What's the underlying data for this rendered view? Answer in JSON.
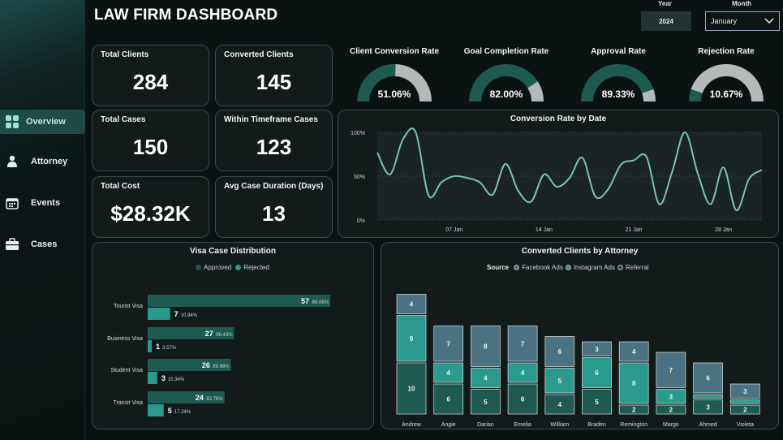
{
  "title": "LAW FIRM DASHBOARD",
  "filters": {
    "year_label": "Year",
    "year_value": "2024",
    "month_label": "Month",
    "month_value": "January"
  },
  "nav": [
    {
      "label": "Overview",
      "icon": "grid-icon"
    },
    {
      "label": "Attorney",
      "icon": "person-icon"
    },
    {
      "label": "Events",
      "icon": "calendar-icon"
    },
    {
      "label": "Cases",
      "icon": "briefcase-icon"
    }
  ],
  "kpis": [
    {
      "label": "Total Clients",
      "value": "284"
    },
    {
      "label": "Converted Clients",
      "value": "145"
    },
    {
      "label": "Total Cases",
      "value": "150"
    },
    {
      "label": "Within Timeframe Cases",
      "value": "123"
    },
    {
      "label": "Total Cost",
      "value": "$28.32K"
    },
    {
      "label": "Avg Case Duration (Days)",
      "value": "13"
    }
  ],
  "gauges": [
    {
      "title": "Client Conversion Rate",
      "label": "51.06%",
      "fraction": 0.5106
    },
    {
      "title": "Goal Completion Rate",
      "label": "82.00%",
      "fraction": 0.82
    },
    {
      "title": "Approval Rate",
      "label": "89.33%",
      "fraction": 0.8933
    },
    {
      "title": "Rejection Rate",
      "label": "10.67%",
      "fraction": 0.1067
    }
  ],
  "colors": {
    "teal_dark": "#1e5a4f",
    "teal": "#2a9a8e",
    "gauge_bg": "#b6b9b9",
    "steel": "#4a7283",
    "line": "#7cc3b5"
  },
  "chart_data": [
    {
      "type": "line",
      "title": "Conversion Rate by Date",
      "x": [
        "2024-01-01",
        "2024-01-02",
        "2024-01-03",
        "2024-01-04",
        "2024-01-05",
        "2024-01-06",
        "2024-01-07",
        "2024-01-08",
        "2024-01-09",
        "2024-01-10",
        "2024-01-11",
        "2024-01-12",
        "2024-01-13",
        "2024-01-14",
        "2024-01-15",
        "2024-01-16",
        "2024-01-17",
        "2024-01-18",
        "2024-01-19",
        "2024-01-20",
        "2024-01-21",
        "2024-01-22",
        "2024-01-23",
        "2024-01-24",
        "2024-01-25",
        "2024-01-26",
        "2024-01-27",
        "2024-01-28",
        "2024-01-29",
        "2024-01-30",
        "2024-01-31"
      ],
      "values": [
        77,
        52,
        92,
        100,
        28,
        43,
        50,
        48,
        43,
        29,
        64,
        33,
        21,
        52,
        38,
        48,
        71,
        27,
        35,
        63,
        68,
        72,
        18,
        55,
        103,
        53,
        18,
        60,
        11,
        47,
        57
      ],
      "x_ticks": [
        "07 Jan",
        "14 Jan",
        "21 Jan",
        "28 Jan"
      ],
      "y_ticks": [
        "0%",
        "50%",
        "100%"
      ],
      "ylim": [
        0,
        100
      ]
    },
    {
      "type": "bar",
      "title": "Visa Case Distribution",
      "legend": [
        "Approved",
        "Rejected"
      ],
      "categories": [
        "Tourist Visa",
        "Business Visa",
        "Student Visa",
        "Transit Visa"
      ],
      "series": [
        {
          "name": "Approved",
          "values": [
            57,
            27,
            26,
            24
          ],
          "pct": [
            "89.06%",
            "96.43%",
            "89.66%",
            "82.76%"
          ]
        },
        {
          "name": "Rejected",
          "values": [
            7,
            1,
            3,
            5
          ],
          "pct": [
            "10.94%",
            "3.57%",
            "10.34%",
            "17.24%"
          ]
        }
      ]
    },
    {
      "type": "bar",
      "title": "Converted Clients by Attorney",
      "legend_title": "Source",
      "legend": [
        "Facebook Ads",
        "Instagram Ads",
        "Referral"
      ],
      "categories": [
        "Andrew",
        "Angie",
        "Darian",
        "Emelia",
        "William",
        "Braden",
        "Remington",
        "Margo",
        "Ahmed",
        "Violeta"
      ],
      "series": [
        {
          "name": "Referral",
          "values": [
            10,
            6,
            5,
            6,
            4,
            5,
            2,
            2,
            3,
            2
          ]
        },
        {
          "name": "Instagram Ads",
          "values": [
            9,
            4,
            4,
            4,
            5,
            6,
            8,
            3,
            1,
            1
          ]
        },
        {
          "name": "Facebook Ads",
          "values": [
            4,
            7,
            8,
            7,
            6,
            3,
            4,
            7,
            6,
            3
          ]
        }
      ]
    }
  ]
}
